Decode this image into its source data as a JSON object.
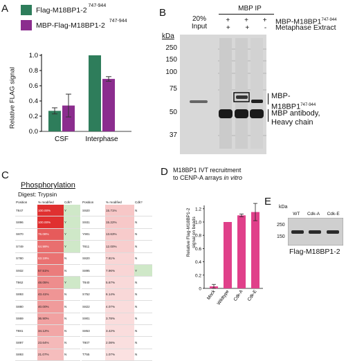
{
  "panel_a": {
    "letter": "A",
    "legend": [
      {
        "label": "Flag-M18BP1-2",
        "sup": "747-944",
        "color": "#2e7d5b"
      },
      {
        "label": "MBP-Flag-M18BP1-2",
        "sup": "747-944",
        "color": "#8b2d8e"
      }
    ],
    "ylabel": "Relative FLAG signal",
    "yticks": [
      "0.0",
      "0.2",
      "0.4",
      "0.6",
      "0.8",
      "1.0"
    ],
    "categories": [
      "CSF",
      "Interphase"
    ]
  },
  "panel_b": {
    "letter": "B",
    "header": "MBP IP",
    "input_label": "20%\nInput",
    "rows": [
      {
        "label": "MBP-M18BP1",
        "sup": "747-944",
        "marks": [
          "+",
          "+",
          "+"
        ]
      },
      {
        "label": "Metaphase Extract",
        "sup": "",
        "marks": [
          "+",
          "+",
          "-"
        ]
      }
    ],
    "kda_label": "kDa",
    "markers": [
      "250",
      "150",
      "100",
      "75",
      "50",
      "37"
    ],
    "annot_band": "MBP-\nM18BP1",
    "annot_band_sup": "747-944",
    "annot_heavy": "MBP antibody,\nHeavy chain"
  },
  "panel_c": {
    "letter": "C",
    "title": "Phosphorylation",
    "digest": "Digest:  Trypsin",
    "headers": [
      "Position",
      "% modified",
      "Cdk?"
    ],
    "left": [
      [
        "T847",
        "100.00%",
        "Y"
      ],
      [
        "S896",
        "100.00%",
        "Y"
      ],
      [
        "S870",
        "76.08%",
        "Y"
      ],
      [
        "S749",
        "64.99%",
        "Y"
      ],
      [
        "S780",
        "63.19%",
        "N"
      ],
      [
        "S932",
        "57.51%",
        "N"
      ],
      [
        "T862",
        "48.05%",
        "Y"
      ],
      [
        "S893",
        "43.41%",
        "N"
      ],
      [
        "S880",
        "40.00%",
        "N"
      ],
      [
        "S869",
        "36.90%",
        "N"
      ],
      [
        "T881",
        "34.12%",
        "N"
      ],
      [
        "S897",
        "23.64%",
        "N"
      ],
      [
        "S893",
        "21.07%",
        "N"
      ]
    ],
    "right": [
      [
        "S920",
        "15.71%",
        "N"
      ],
      [
        "S931",
        "15.22%",
        "N"
      ],
      [
        "Y901",
        "13.63%",
        "N"
      ],
      [
        "T811",
        "12.00%",
        "N"
      ],
      [
        "S820",
        "7.81%",
        "N"
      ],
      [
        "S895",
        "7.96%",
        "Y"
      ],
      [
        "T840",
        "5.67%",
        "N"
      ],
      [
        "S752",
        "6.14%",
        "N"
      ],
      [
        "S822",
        "4.07%",
        "N"
      ],
      [
        "S901",
        "3.78%",
        "N"
      ],
      [
        "S853",
        "3.42%",
        "N"
      ],
      [
        "T807",
        "2.08%",
        "N"
      ],
      [
        "T755",
        "1.07%",
        "N"
      ]
    ],
    "colors": {
      "heat_max": "#e03030",
      "heat_min": "#fbe3e3",
      "cdk_yes": "#cfe8c8"
    }
  },
  "panel_d": {
    "letter": "D",
    "title_line1": "M18BP1 IVT recruitment",
    "title_line2": "to CENP-A arrays ",
    "title_italic": "in vitro",
    "ylabel_line1": "Relative Flag-M18BP1-2",
    "ylabel_line2": "signal on beads",
    "yticks": [
      "0",
      "0.2",
      "0.4",
      "0.6",
      "0.8",
      "1.0",
      "1.2"
    ],
    "bar_color": "#e0408a"
  },
  "panel_e": {
    "letter": "E",
    "kda_label": "kDa",
    "lanes": [
      "WT",
      "Cdk-A",
      "Cdk-E"
    ],
    "markers": [
      "250",
      "150"
    ],
    "caption": "Flag-M18BP1-2"
  },
  "chart_data": [
    {
      "type": "bar",
      "title": "",
      "xlabel": "",
      "ylabel": "Relative FLAG signal",
      "ylim": [
        0,
        1.0
      ],
      "categories": [
        "CSF",
        "Interphase"
      ],
      "series": [
        {
          "name": "Flag-M18BP1-2 747-944",
          "values": [
            0.27,
            1.0
          ],
          "errors": [
            0.04,
            0.0
          ],
          "color": "#2e7d5b"
        },
        {
          "name": "MBP-Flag-M18BP1-2 747-944",
          "values": [
            0.34,
            0.69
          ],
          "errors": [
            0.15,
            0.03
          ],
          "color": "#8b2d8e"
        }
      ],
      "grid": false,
      "legend": "top"
    },
    {
      "type": "bar",
      "title": "M18BP1 IVT recruitment to CENP-A arrays in vitro",
      "xlabel": "",
      "ylabel": "Relative Flag-M18BP1-2 signal on beads",
      "ylim": [
        0,
        1.3
      ],
      "categories": [
        "Mock",
        "Wildtype",
        "Cdk-A",
        "Cdk-E"
      ],
      "values": [
        0.03,
        1.0,
        1.1,
        1.15
      ],
      "errors": [
        0.03,
        0.0,
        0.02,
        0.13
      ],
      "color": "#e0408a",
      "grid": false
    }
  ]
}
